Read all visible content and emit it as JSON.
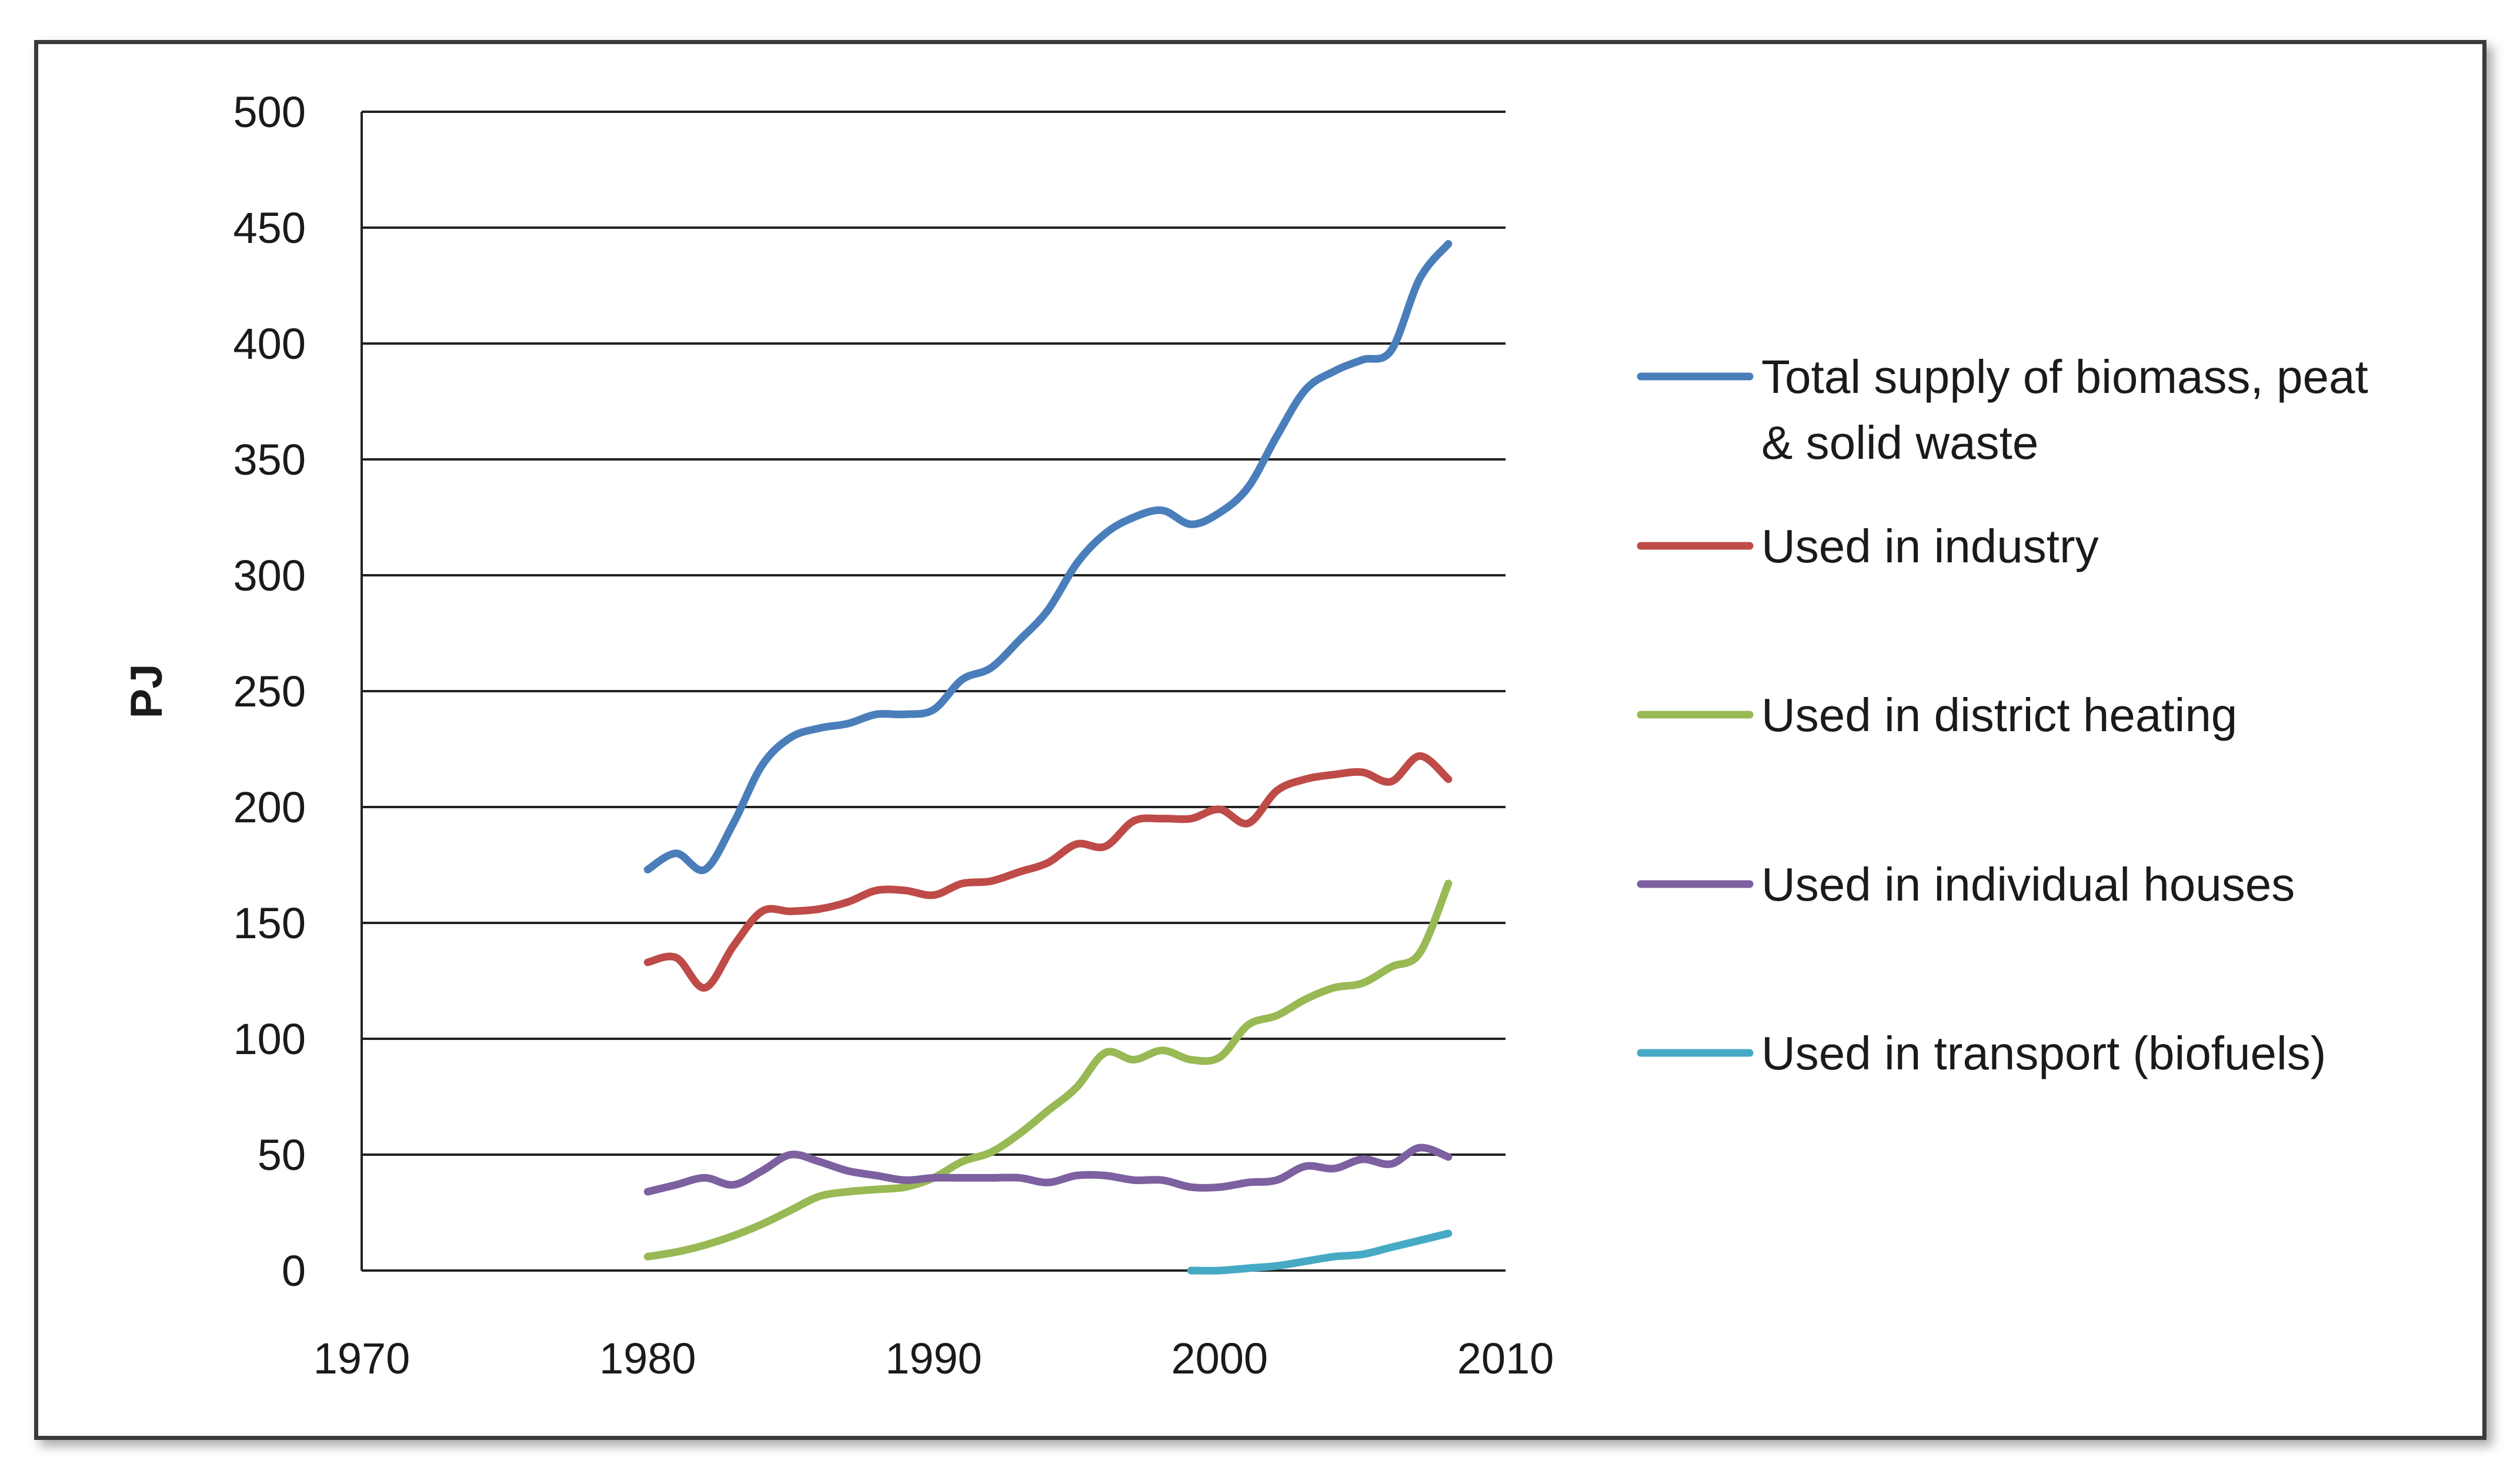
{
  "chart_data": {
    "type": "line",
    "title": "",
    "xlabel": "",
    "ylabel": "PJ",
    "xlim": [
      1970,
      2010
    ],
    "ylim": [
      0,
      500
    ],
    "x_ticks": [
      "1970",
      "1980",
      "1990",
      "2000",
      "2010"
    ],
    "y_ticks": [
      "0",
      "50",
      "100",
      "150",
      "200",
      "250",
      "300",
      "350",
      "400",
      "450",
      "500"
    ],
    "grid": "horizontal",
    "legend_position": "right",
    "series": [
      {
        "name": "Total supply of biomass, peat & solid waste",
        "legend_lines": [
          "Total supply of biomass, peat",
          "& solid waste"
        ],
        "color": "#4a7ebb",
        "x": [
          1980,
          1981,
          1982,
          1983,
          1984,
          1985,
          1986,
          1987,
          1988,
          1989,
          1990,
          1991,
          1992,
          1993,
          1994,
          1995,
          1996,
          1997,
          1998,
          1999,
          2000,
          2001,
          2002,
          2003,
          2004,
          2005,
          2006,
          2007,
          2008
        ],
        "y": [
          173,
          180,
          173,
          193,
          218,
          230,
          234,
          236,
          240,
          240,
          242,
          255,
          260,
          272,
          285,
          305,
          318,
          325,
          328,
          322,
          327,
          338,
          360,
          380,
          388,
          393,
          397,
          428,
          443
        ]
      },
      {
        "name": "Used in industry",
        "legend_lines": [
          "Used in industry"
        ],
        "color": "#be4b48",
        "x": [
          1980,
          1981,
          1982,
          1983,
          1984,
          1985,
          1986,
          1987,
          1988,
          1989,
          1990,
          1991,
          1992,
          1993,
          1994,
          1995,
          1996,
          1997,
          1998,
          1999,
          2000,
          2001,
          2002,
          2003,
          2004,
          2005,
          2006,
          2007,
          2008
        ],
        "y": [
          133,
          135,
          122,
          140,
          155,
          155,
          156,
          159,
          164,
          164,
          162,
          167,
          168,
          172,
          176,
          184,
          183,
          194,
          195,
          195,
          199,
          193,
          207,
          212,
          214,
          215,
          211,
          222,
          212
        ]
      },
      {
        "name": "Used in district heating",
        "legend_lines": [
          "Used in district heating"
        ],
        "color": "#98b954",
        "x": [
          1980,
          1981,
          1982,
          1983,
          1984,
          1985,
          1986,
          1987,
          1988,
          1989,
          1990,
          1991,
          1992,
          1993,
          1994,
          1995,
          1996,
          1997,
          1998,
          1999,
          2000,
          2001,
          2002,
          2003,
          2004,
          2005,
          2006,
          2007,
          2008
        ],
        "y": [
          6,
          8,
          11,
          15,
          20,
          26,
          32,
          34,
          35,
          36,
          40,
          47,
          51,
          59,
          69,
          79,
          94,
          91,
          95,
          91,
          92,
          106,
          110,
          117,
          122,
          124,
          131,
          137,
          167
        ]
      },
      {
        "name": "Used in individual houses",
        "legend_lines": [
          "Used in individual houses"
        ],
        "color": "#7d60a0",
        "x": [
          1980,
          1981,
          1982,
          1983,
          1984,
          1985,
          1986,
          1987,
          1988,
          1989,
          1990,
          1991,
          1992,
          1993,
          1994,
          1995,
          1996,
          1997,
          1998,
          1999,
          2000,
          2001,
          2002,
          2003,
          2004,
          2005,
          2006,
          2007,
          2008
        ],
        "y": [
          34,
          37,
          40,
          37,
          43,
          50,
          47,
          43,
          41,
          39,
          40,
          40,
          40,
          40,
          38,
          41,
          41,
          39,
          39,
          36,
          36,
          38,
          39,
          45,
          44,
          48,
          46,
          53,
          49
        ]
      },
      {
        "name": "Used in transport (biofuels)",
        "legend_lines": [
          "Used in transport (biofuels)"
        ],
        "color": "#46aac5",
        "x": [
          1999,
          2000,
          2001,
          2002,
          2003,
          2004,
          2005,
          2006,
          2007,
          2008
        ],
        "y": [
          0,
          0,
          1,
          2,
          4,
          6,
          7,
          10,
          13,
          16
        ]
      }
    ]
  }
}
